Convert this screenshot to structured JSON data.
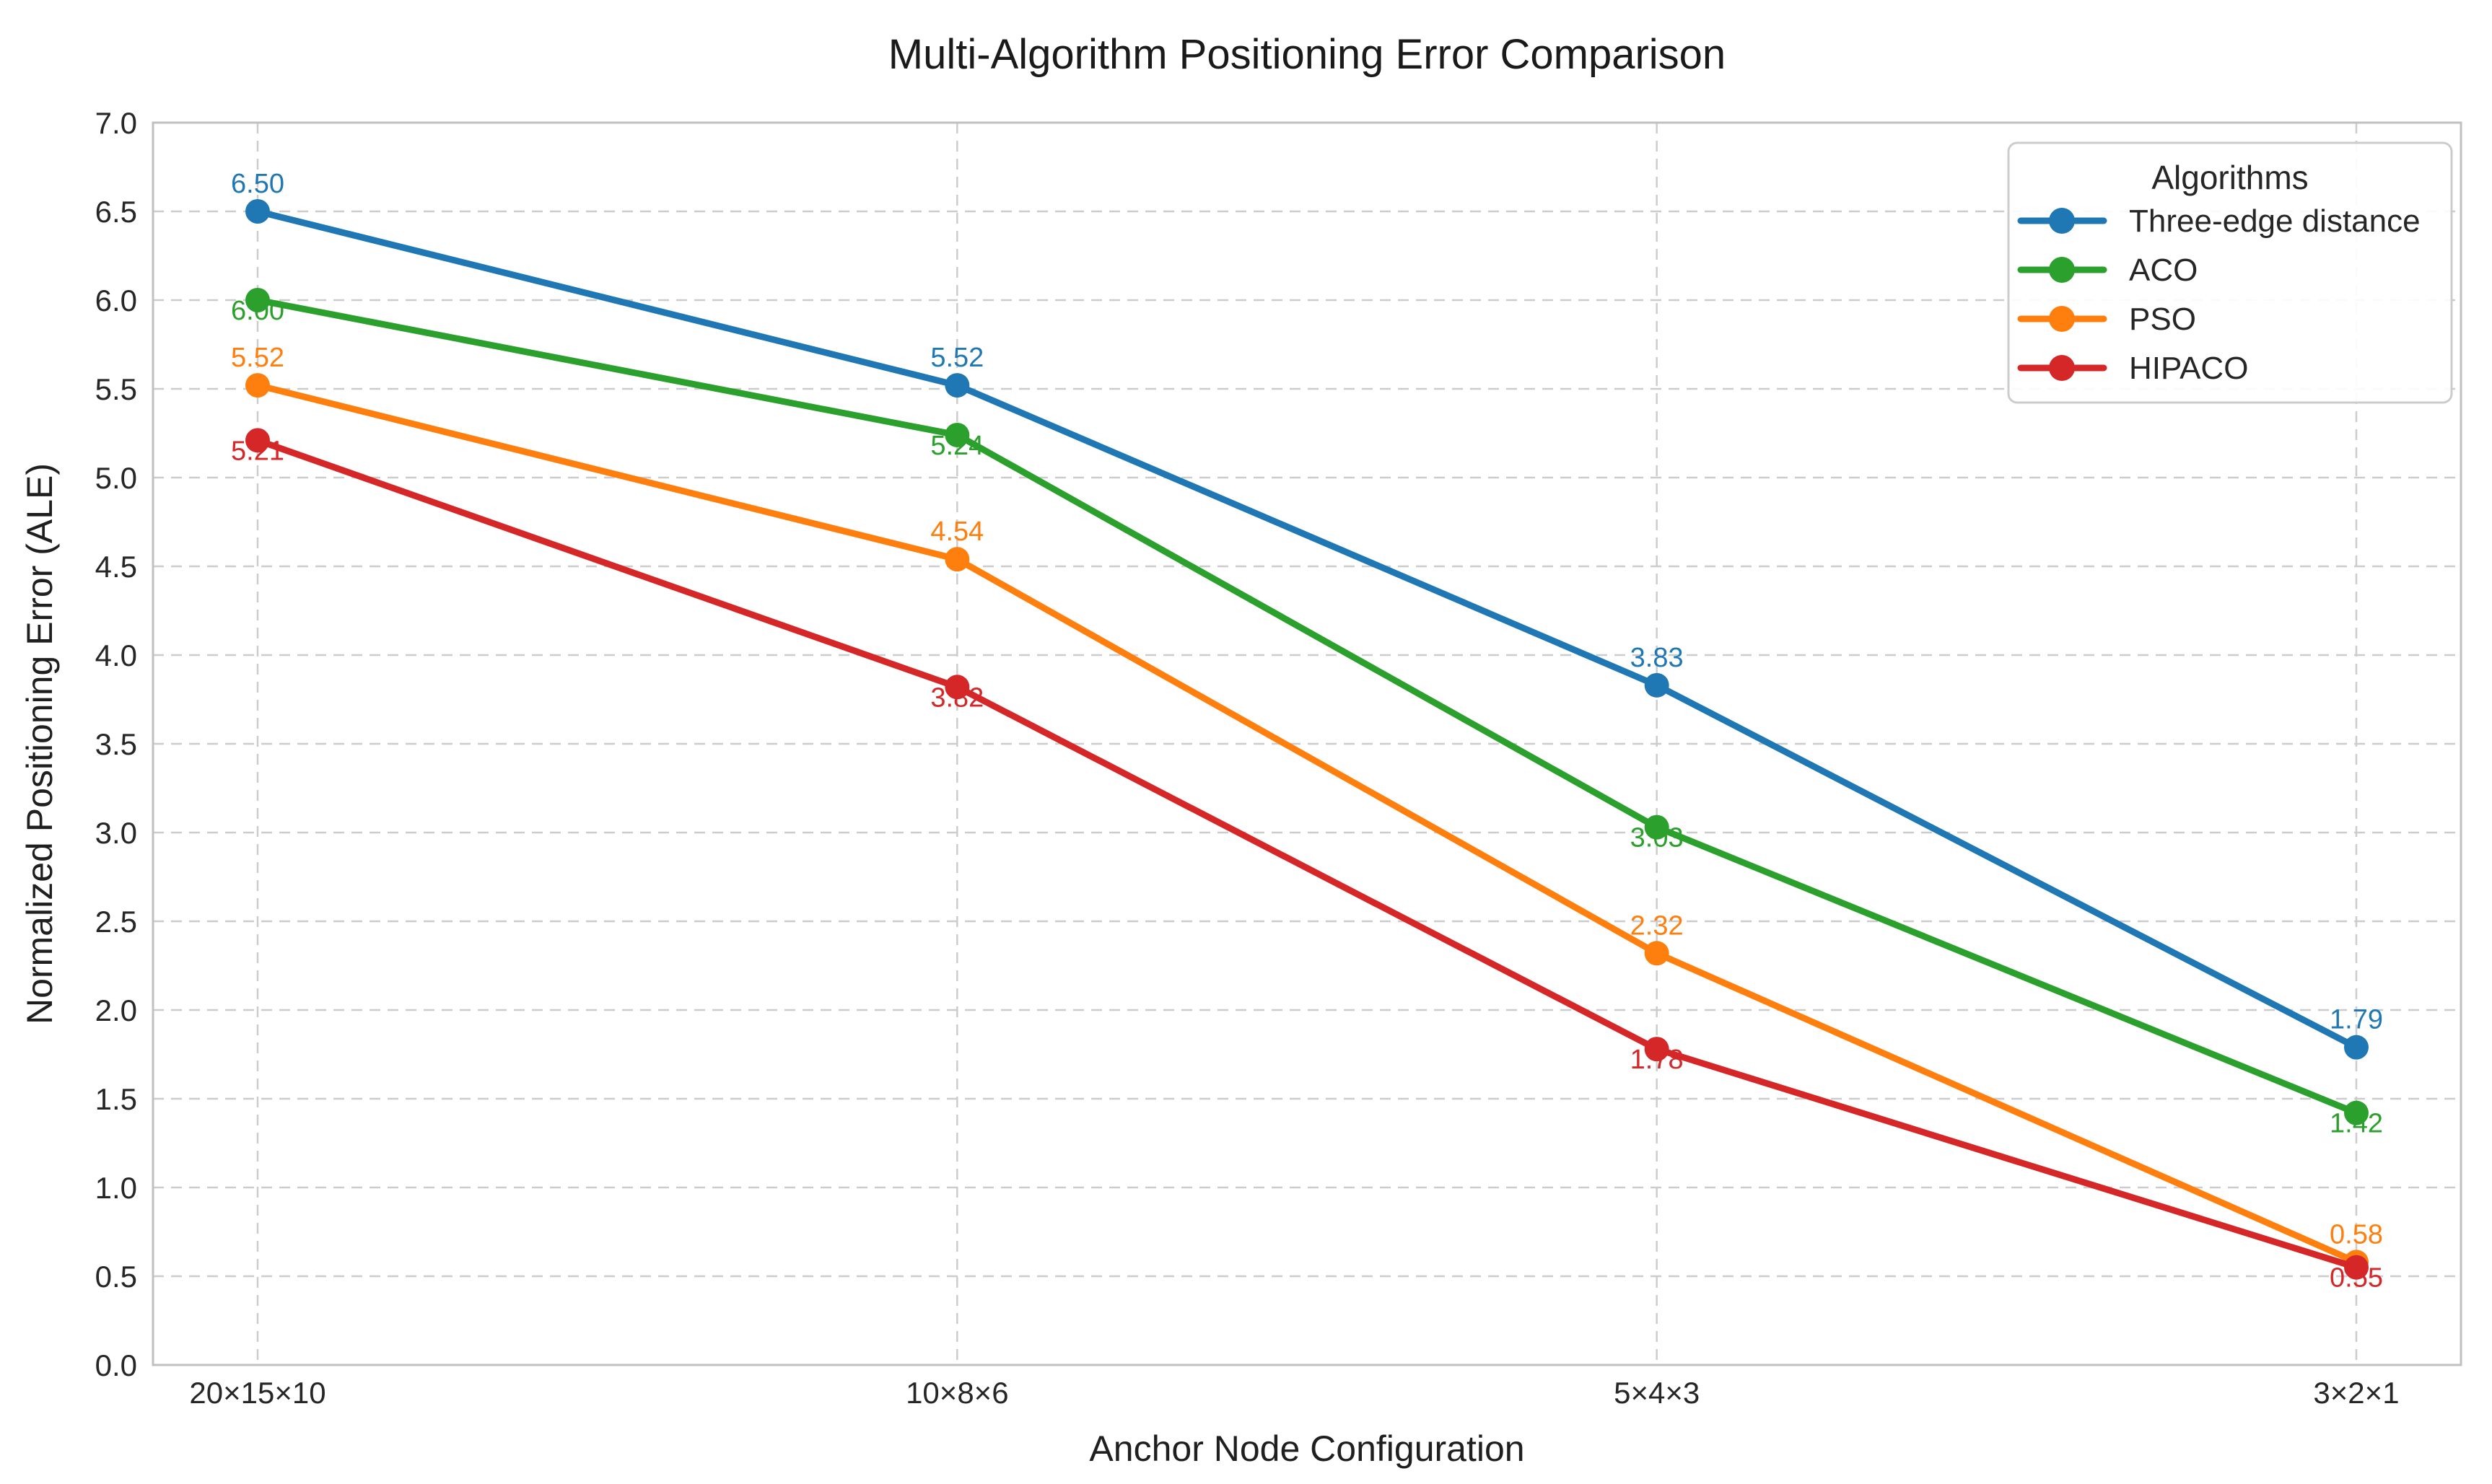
{
  "chart_data": {
    "type": "line",
    "title": "Multi-Algorithm Positioning Error Comparison",
    "xlabel": "Anchor Node Configuration",
    "ylabel": "Normalized Positioning Error (ALE)",
    "categories": [
      "20×15×10",
      "10×8×6",
      "5×4×3",
      "3×2×1"
    ],
    "series": [
      {
        "name": "Three-edge distance",
        "color": "#1f77b4",
        "values": [
          6.5,
          5.52,
          3.83,
          1.79
        ],
        "label_position": "above"
      },
      {
        "name": "ACO",
        "color": "#2ca02c",
        "values": [
          6.0,
          5.24,
          3.03,
          1.42
        ],
        "label_position": "below"
      },
      {
        "name": "PSO",
        "color": "#ff7f0e",
        "values": [
          5.52,
          4.54,
          2.32,
          0.58
        ],
        "label_position": "above"
      },
      {
        "name": "HIPACO",
        "color": "#d62728",
        "values": [
          5.21,
          3.82,
          1.78,
          0.55
        ],
        "label_position": "below"
      }
    ],
    "ylim": [
      0.0,
      7.0
    ],
    "ytick_step": 0.5,
    "yticks": [
      "0.0",
      "0.5",
      "1.0",
      "1.5",
      "2.0",
      "2.5",
      "3.0",
      "3.5",
      "4.0",
      "4.5",
      "5.0",
      "5.5",
      "6.0",
      "6.5",
      "7.0"
    ],
    "grid": true,
    "grid_style": "dashed",
    "legend": {
      "title": "Algorithms",
      "position": "upper right",
      "entries": [
        "Three-edge distance",
        "ACO",
        "PSO",
        "HIPACO"
      ]
    },
    "colors": {
      "text": "#262626",
      "grid": "#cccccc",
      "spine": "#c0c0c0",
      "legend_border": "#cccccc",
      "background": "#ffffff"
    }
  }
}
